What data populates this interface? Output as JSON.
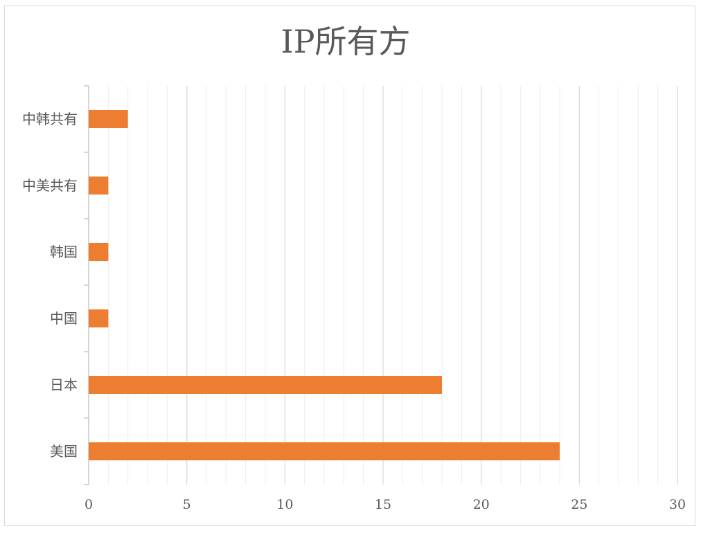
{
  "chart_data": {
    "type": "bar",
    "orientation": "horizontal",
    "title": "IP所有方",
    "categories": [
      "美国",
      "日本",
      "中国",
      "韩国",
      "中美共有",
      "中韩共有"
    ],
    "values": [
      24,
      18,
      1,
      1,
      1,
      2
    ],
    "xlim": [
      0,
      30
    ],
    "xticks": [
      "0",
      "5",
      "10",
      "15",
      "20",
      "25",
      "30"
    ],
    "grid": true,
    "bar_color": "#ED7D31",
    "grid_color": "#d9d9d9",
    "legend": "none"
  }
}
